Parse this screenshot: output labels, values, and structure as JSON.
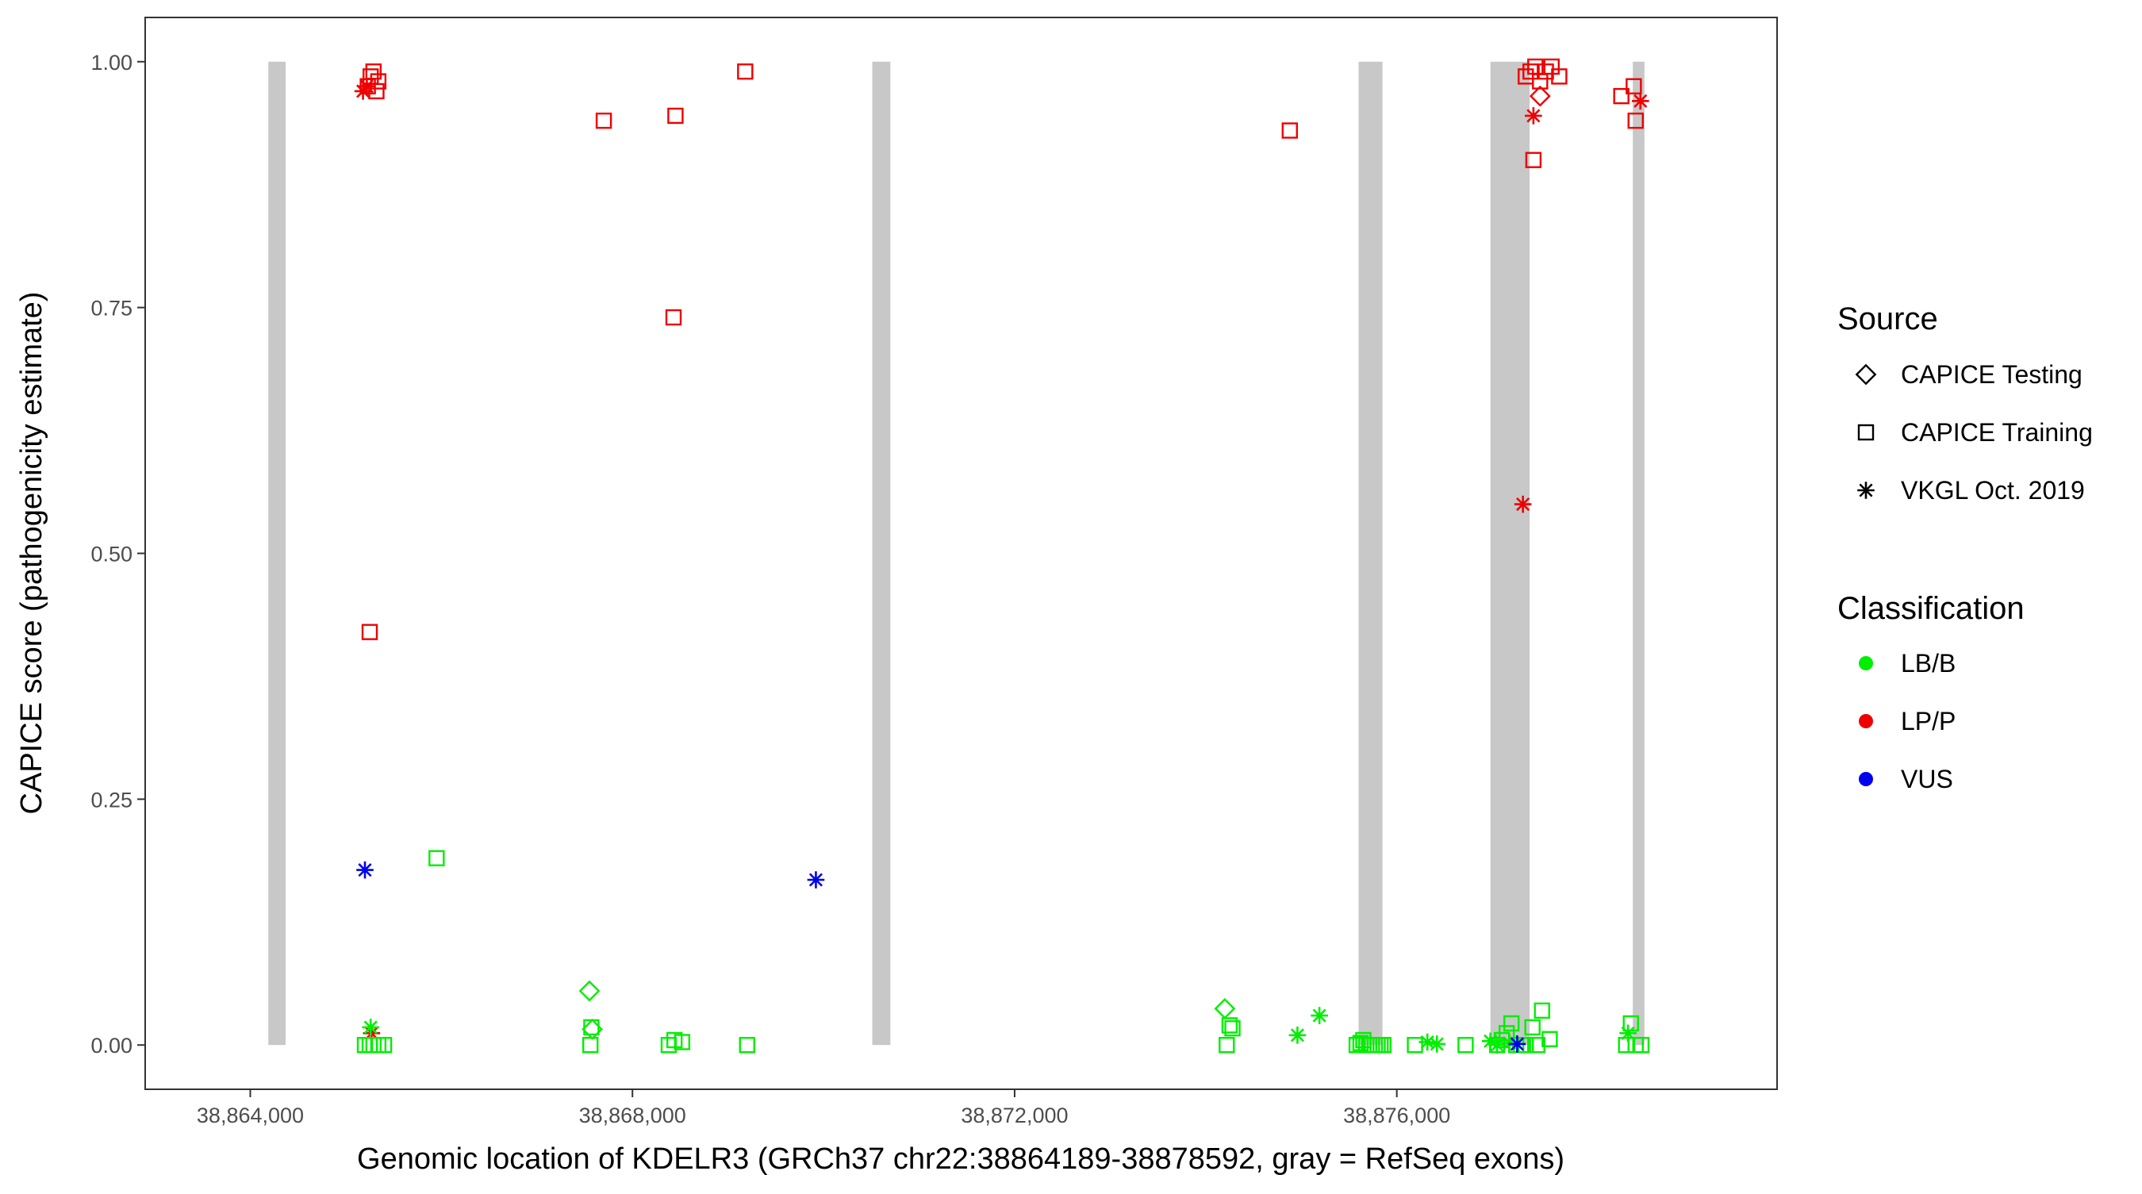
{
  "chart_data": {
    "type": "scatter",
    "title": "",
    "xlabel": "Genomic location of KDELR3 (GRCh37 chr22:38864189-38878592, gray = RefSeq exons)",
    "ylabel": "CAPICE score (pathogenicity estimate)",
    "xlim": [
      38862900,
      38879980
    ],
    "ylim": [
      -0.045,
      1.045
    ],
    "x_ticks": [
      38864000,
      38868000,
      38872000,
      38876000
    ],
    "x_tick_labels": [
      "38,864,000",
      "38,868,000",
      "38,872,000",
      "38,876,000"
    ],
    "y_ticks": [
      0,
      0.25,
      0.5,
      0.75,
      1.0
    ],
    "y_tick_labels": [
      "0.00",
      "0.25",
      "0.50",
      "0.75",
      "1.00"
    ],
    "grid": false,
    "exons": [
      {
        "start": 38864189,
        "end": 38864370
      },
      {
        "start": 38870510,
        "end": 38870700
      },
      {
        "start": 38875600,
        "end": 38875850
      },
      {
        "start": 38876980,
        "end": 38877390
      },
      {
        "start": 38878470,
        "end": 38878592
      }
    ],
    "exon_color": "#c8c8c8",
    "legend": {
      "placement": "right",
      "source": {
        "title": "Source",
        "entries": [
          {
            "label": "CAPICE Testing",
            "shape": "diamond"
          },
          {
            "label": "CAPICE Training",
            "shape": "square"
          },
          {
            "label": "VKGL Oct. 2019",
            "shape": "asterisk"
          }
        ]
      },
      "classification": {
        "title": "Classification",
        "entries": [
          {
            "label": "LB/B",
            "color": "#00ee00"
          },
          {
            "label": "LP/P",
            "color": "#ee0000"
          },
          {
            "label": "VUS",
            "color": "#0000ee"
          }
        ]
      }
    },
    "series": [
      {
        "source": "CAPICE Training",
        "classification": "LP/P",
        "points": [
          [
            38865290,
            0.99
          ],
          [
            38865260,
            0.985
          ],
          [
            38865340,
            0.98
          ],
          [
            38865230,
            0.975
          ],
          [
            38865320,
            0.97
          ],
          [
            38865250,
            0.42
          ],
          [
            38867700,
            0.94
          ],
          [
            38868450,
            0.945
          ],
          [
            38868430,
            0.74
          ],
          [
            38869180,
            0.99
          ],
          [
            38874880,
            0.93
          ],
          [
            38877350,
            0.985
          ],
          [
            38877400,
            0.99
          ],
          [
            38877450,
            0.995
          ],
          [
            38877500,
            0.98
          ],
          [
            38877560,
            0.99
          ],
          [
            38877620,
            0.995
          ],
          [
            38877700,
            0.985
          ],
          [
            38877430,
            0.9
          ],
          [
            38878350,
            0.965
          ],
          [
            38878480,
            0.975
          ],
          [
            38878500,
            0.94
          ]
        ]
      },
      {
        "source": "CAPICE Testing",
        "classification": "LP/P",
        "points": [
          [
            38877500,
            0.965
          ]
        ]
      },
      {
        "source": "VKGL Oct. 2019",
        "classification": "LP/P",
        "points": [
          [
            38865180,
            0.97
          ],
          [
            38865220,
            0.975
          ],
          [
            38865270,
            0.012
          ],
          [
            38877320,
            0.55
          ],
          [
            38877430,
            0.945
          ],
          [
            38878550,
            0.96
          ]
        ]
      },
      {
        "source": "CAPICE Training",
        "classification": "LB/B",
        "points": [
          [
            38865200,
            0.0
          ],
          [
            38865250,
            0.0
          ],
          [
            38865290,
            0.0
          ],
          [
            38865340,
            0.0
          ],
          [
            38865400,
            0.0
          ],
          [
            38865950,
            0.19
          ],
          [
            38867560,
            0.0
          ],
          [
            38867570,
            0.018
          ],
          [
            38868380,
            0.0
          ],
          [
            38868440,
            0.005
          ],
          [
            38868520,
            0.003
          ],
          [
            38869200,
            0.0
          ],
          [
            38874220,
            0.0
          ],
          [
            38874250,
            0.02
          ],
          [
            38874280,
            0.017
          ],
          [
            38875580,
            0.0
          ],
          [
            38875620,
            0.002
          ],
          [
            38875650,
            0.005
          ],
          [
            38875680,
            0.0
          ],
          [
            38875710,
            0.0
          ],
          [
            38875740,
            0.0
          ],
          [
            38875770,
            0.0
          ],
          [
            38875800,
            0.0
          ],
          [
            38875830,
            0.0
          ],
          [
            38875860,
            0.0
          ],
          [
            38876190,
            0.0
          ],
          [
            38876720,
            0.0
          ],
          [
            38877050,
            0.0
          ],
          [
            38877100,
            0.005
          ],
          [
            38877150,
            0.012
          ],
          [
            38877200,
            0.022
          ],
          [
            38877250,
            0.0
          ],
          [
            38877300,
            0.0
          ],
          [
            38877350,
            0.0
          ],
          [
            38877420,
            0.018
          ],
          [
            38877470,
            0.0
          ],
          [
            38877520,
            0.035
          ],
          [
            38877600,
            0.006
          ],
          [
            38878400,
            0.0
          ],
          [
            38878450,
            0.022
          ],
          [
            38878500,
            0.0
          ],
          [
            38878560,
            0.0
          ]
        ]
      },
      {
        "source": "CAPICE Testing",
        "classification": "LB/B",
        "points": [
          [
            38867550,
            0.055
          ],
          [
            38867580,
            0.016
          ],
          [
            38874200,
            0.037
          ]
        ]
      },
      {
        "source": "VKGL Oct. 2019",
        "classification": "LB/B",
        "points": [
          [
            38865260,
            0.018
          ],
          [
            38874960,
            0.01
          ],
          [
            38875190,
            0.03
          ],
          [
            38876320,
            0.003
          ],
          [
            38876420,
            0.001
          ],
          [
            38876980,
            0.004
          ],
          [
            38877050,
            0.0
          ],
          [
            38877180,
            0.002
          ],
          [
            38878420,
            0.012
          ]
        ]
      },
      {
        "source": "VKGL Oct. 2019",
        "classification": "VUS",
        "points": [
          [
            38865200,
            0.178
          ],
          [
            38869920,
            0.168
          ],
          [
            38877260,
            0.001
          ]
        ]
      }
    ]
  }
}
